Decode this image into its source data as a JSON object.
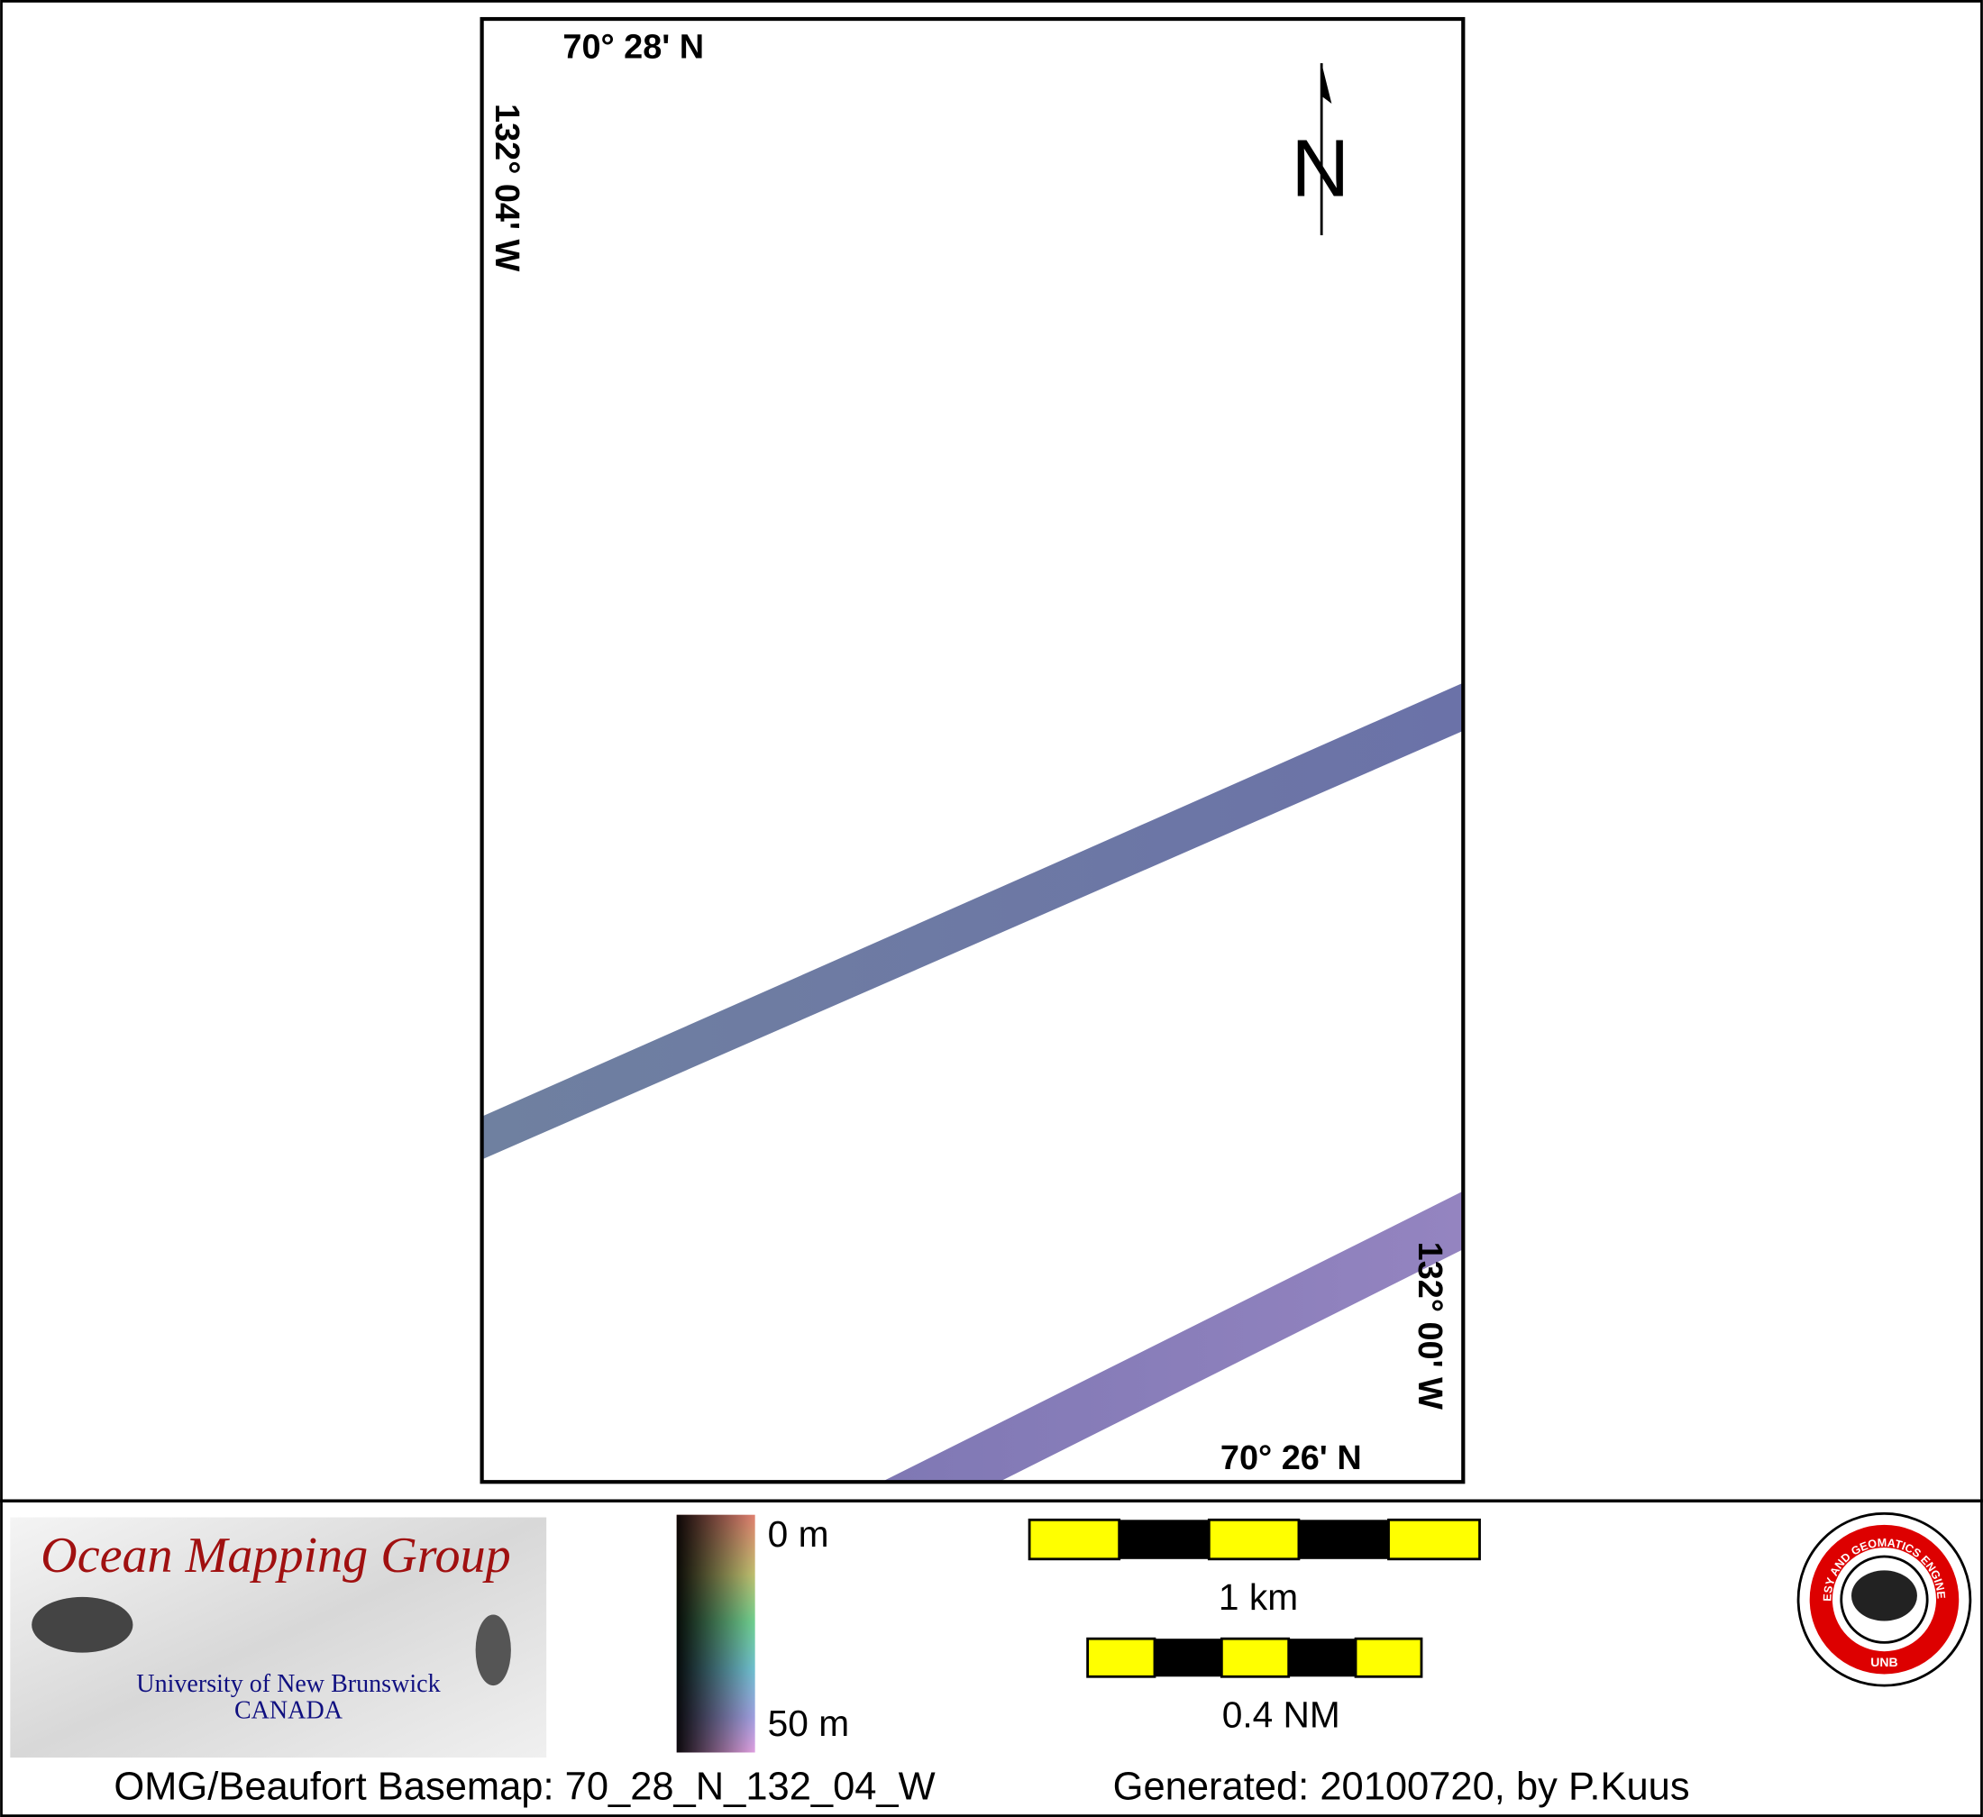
{
  "map": {
    "coordinates": {
      "top_latitude": "70° 28' N",
      "left_longitude": "132° 04' W",
      "right_longitude": "132° 00' W",
      "bottom_latitude": "70° 26' N"
    },
    "north_label": "N",
    "depth_legend": {
      "min_label": "0 m",
      "max_label": "50 m"
    },
    "scale_bars": [
      "1 km",
      "0.4 NM"
    ]
  },
  "logos": {
    "omg": {
      "title": "Ocean Mapping Group",
      "line1": "University of New Brunswick",
      "line2": "CANADA"
    },
    "unb": {
      "ring": "GEODESY AND GEOMATICS ENGINEERING",
      "bottom": "UNB"
    }
  },
  "footer": {
    "basemap": "OMG/Beaufort Basemap: 70_28_N_132_04_W",
    "generated": "Generated: 20100720, by P.Kuus"
  }
}
